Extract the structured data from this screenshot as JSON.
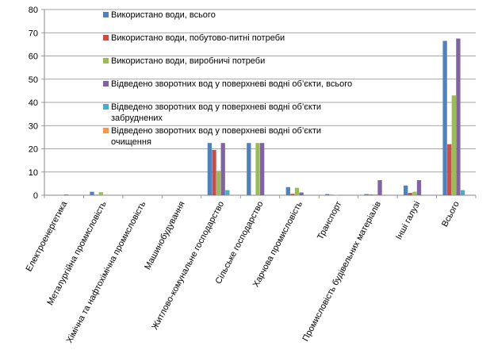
{
  "chart_data": {
    "type": "bar",
    "title": "",
    "xlabel": "",
    "ylabel": "",
    "ylim": [
      0,
      80
    ],
    "yticks": [
      0,
      10,
      20,
      30,
      40,
      50,
      60,
      70,
      80
    ],
    "grid": "horizontal",
    "legend_position": "top-center",
    "categories": [
      "Електроенергетика",
      "Металургійна промисловість",
      "Хімічна та нафтохімічна промисловість",
      "Машинобудування",
      "Житлово-комунальне господарство",
      "Сільське господарство",
      "Харчова промисловість",
      "Транспорт",
      "Промисловість будівельних матеріалів",
      "Інші галузі",
      "Всього"
    ],
    "series": [
      {
        "name": "Використано води, всього",
        "color": "#4F81BD",
        "values": [
          0.1,
          1.5,
          0.0,
          0.1,
          22.5,
          22.5,
          3.5,
          0.5,
          0.5,
          4.2,
          66.5
        ]
      },
      {
        "name": "Використано води, побутово-питні потреби",
        "color": "#C0504D",
        "values": [
          0.0,
          0.2,
          0.0,
          0.0,
          19.5,
          0.0,
          0.6,
          0.2,
          0.3,
          1.0,
          22.0
        ]
      },
      {
        "name": "Використано води, виробничі потреби",
        "color": "#9BBB59",
        "values": [
          0.0,
          1.3,
          0.0,
          0.0,
          10.5,
          22.5,
          3.2,
          0.1,
          0.4,
          1.5,
          43.0
        ]
      },
      {
        "name": "Відведено зворотних вод у поверхневі водні об’єкти, всього",
        "color": "#8064A2",
        "values": [
          0.3,
          0.0,
          0.0,
          0.0,
          22.5,
          22.5,
          1.2,
          0.1,
          6.5,
          6.5,
          67.5
        ]
      },
      {
        "name": "Відведено зворотних вод у поверхневі водні об’єкти забруднених",
        "color": "#4BACC6",
        "values": [
          0.0,
          0.0,
          0.0,
          0.0,
          2.2,
          0.0,
          0.0,
          0.0,
          0.0,
          0.0,
          2.2
        ]
      },
      {
        "name": "Відведено зворотних вод у поверхневі водні об’єкти очищення",
        "color": "#F79646",
        "values": [
          0.0,
          0.0,
          0.0,
          0.0,
          0.0,
          0.0,
          0.0,
          0.0,
          0.0,
          0.0,
          0.0
        ]
      }
    ]
  }
}
